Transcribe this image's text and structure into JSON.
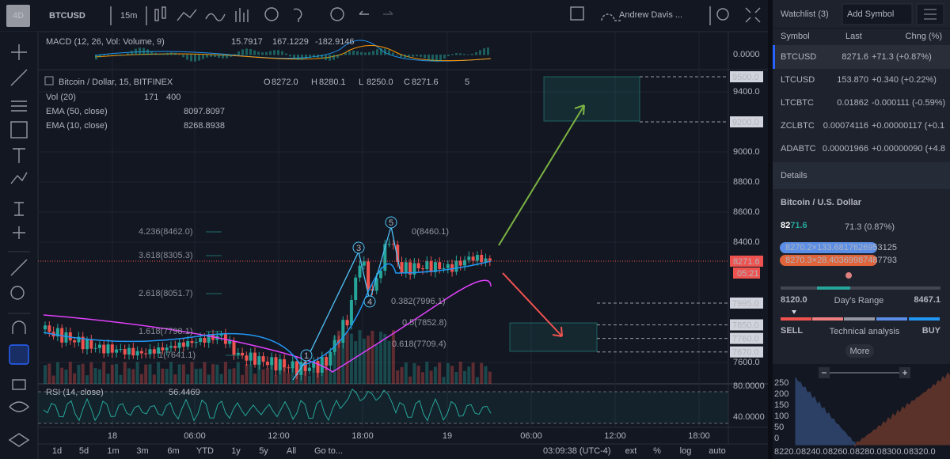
{
  "toolbar": {
    "logo": "4D",
    "symbol": "BTCUSD",
    "interval": "15m",
    "user": "Andrew Davis ..."
  },
  "macd": {
    "label": "MACD (12, 26, Vol: Volume, 9)",
    "values": [
      "15.7917",
      "167.1229",
      "-182.9146"
    ],
    "axis": "0.0000"
  },
  "legend": {
    "title": "Bitcoin / Dollar, 15, BITFINEX",
    "ohlc": [
      [
        "O",
        "8272.0"
      ],
      [
        "H",
        "8280.1"
      ],
      [
        "L",
        "8250.0"
      ],
      [
        "C",
        "8271.6"
      ]
    ],
    "alerts": "5"
  },
  "indicators": [
    {
      "name": "Vol (20)",
      "values": [
        "171",
        "400"
      ]
    },
    {
      "name": "EMA (50, close)",
      "values": [
        "8097.8097"
      ]
    },
    {
      "name": "EMA (10, close)",
      "values": [
        "8268.8938"
      ]
    }
  ],
  "price_axis": {
    "grid": [
      "9400.0",
      "9000.0",
      "8800.0",
      "8600.0",
      "8400.0",
      "7600.0"
    ],
    "levels": [
      "9500.0",
      "9200.0",
      "7995.0",
      "7850.0",
      "7760.0",
      "7670.0"
    ],
    "last": "8271.6",
    "countdown": "05:21"
  },
  "fib_left": [
    "4.236(8462.0)",
    "3.618(8305.3)",
    "2.618(8051.7)",
    "1.618(7798.1)",
    "1(7641.1)"
  ],
  "fib_right": [
    "0(8460.1)",
    "0.382(7996.1)",
    "0.5(7852.8)",
    "0.618(7709.4)"
  ],
  "waves": [
    "1",
    "3",
    "4",
    "5"
  ],
  "rsi": {
    "label": "RSI (14, close)",
    "value": "56.4469",
    "axis": [
      "80.0000",
      "40.0000"
    ]
  },
  "time_axis": [
    "18",
    "06:00",
    "12:00",
    "18:00",
    "19",
    "06:00",
    "12:00",
    "18:00"
  ],
  "bottom_bar": {
    "ranges": [
      "1d",
      "5d",
      "1m",
      "3m",
      "6m",
      "YTD",
      "1y",
      "5y",
      "All",
      "Go to..."
    ],
    "time": "03:09:38 (UTC-4)",
    "options": [
      "ext",
      "%",
      "log",
      "auto"
    ]
  },
  "watchlist": {
    "title": "Watchlist (3)",
    "add": "Add Symbol",
    "columns": [
      "Symbol",
      "Last",
      "Chng (%)"
    ],
    "rows": [
      [
        "BTCUSD",
        "8271.6",
        "+71.3 (+0.87%)"
      ],
      [
        "LTCUSD",
        "153.870",
        "+0.340 (+0.22%)"
      ],
      [
        "LTCBTC",
        "0.01862",
        "-0.000111 (-0.59%)"
      ],
      [
        "ZCLBTC",
        "0.00074116",
        "+0.00000117 (+0.1"
      ],
      [
        "ADABTC",
        "0.00001966",
        "+0.00000090 (+4.8"
      ]
    ]
  },
  "details": {
    "header": "Details",
    "name": "Bitcoin / U.S. Dollar",
    "price_major": "82",
    "price_minor": "71.6",
    "change": "71.3 (0.87%)",
    "bid": "8270.2×133.6817626953125",
    "ask": "8270.3×28.40369987487793",
    "range_low": "8120.0",
    "range_label": "Day's Range",
    "range_high": "8467.1",
    "sell": "SELL",
    "analysis": "Technical analysis",
    "buy": "BUY",
    "more": "More",
    "depth_y": [
      "250",
      "200",
      "150",
      "100",
      "50",
      "0"
    ],
    "depth_x": [
      "8220.0",
      "8240.0",
      "8260.0",
      "8280.0",
      "8300.0",
      "8320.0"
    ]
  }
}
